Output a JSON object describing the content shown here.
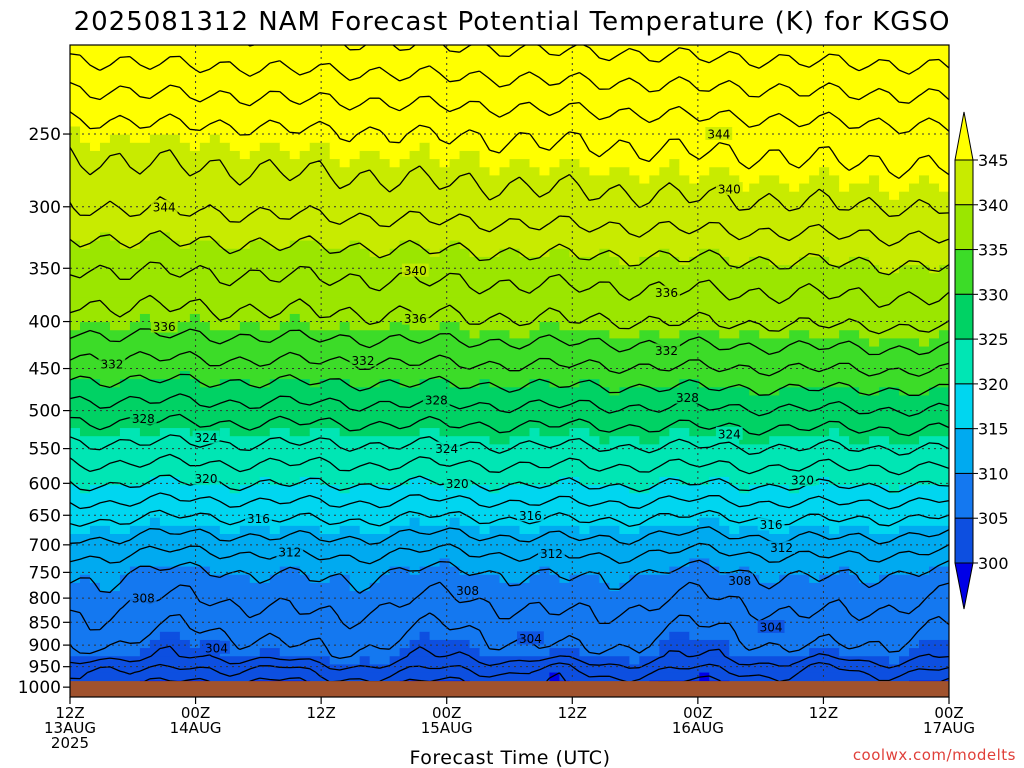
{
  "chart_data": {
    "type": "heatmap",
    "title": "2025081312 NAM Forecast Potential Temperature (K) for KGSO",
    "xlabel": "Forecast Time (UTC)",
    "ylabel": "",
    "y_axis": {
      "scale": "log-pressure",
      "inverted": true,
      "ticks": [
        250,
        300,
        350,
        400,
        450,
        500,
        550,
        600,
        650,
        700,
        750,
        800,
        850,
        900,
        950,
        1000
      ],
      "range": [
        200,
        1025
      ]
    },
    "x_axis": {
      "range_hours": [
        0,
        84
      ],
      "ticks": [
        {
          "hour": 0,
          "lines": [
            "12Z",
            "13AUG",
            "2025"
          ]
        },
        {
          "hour": 12,
          "lines": [
            "00Z",
            "14AUG"
          ]
        },
        {
          "hour": 24,
          "lines": [
            "12Z"
          ]
        },
        {
          "hour": 36,
          "lines": [
            "00Z",
            "15AUG"
          ]
        },
        {
          "hour": 48,
          "lines": [
            "12Z"
          ]
        },
        {
          "hour": 60,
          "lines": [
            "00Z",
            "16AUG"
          ]
        },
        {
          "hour": 72,
          "lines": [
            "12Z"
          ]
        },
        {
          "hour": 84,
          "lines": [
            "00Z",
            "17AUG"
          ]
        }
      ]
    },
    "grid": true,
    "colorbar": {
      "placement": "right",
      "levels": [
        300,
        305,
        310,
        315,
        320,
        325,
        330,
        335,
        340,
        345
      ],
      "colors": [
        "#0000e6",
        "#0d4fe0",
        "#1478f0",
        "#00aaf0",
        "#00d6f0",
        "#00e6b4",
        "#00d264",
        "#3cdc28",
        "#9be600",
        "#c8eb00",
        "#ffff00"
      ]
    },
    "base_profile": [
      {
        "p": 1000,
        "theta": 300
      },
      {
        "p": 925,
        "theta": 305
      },
      {
        "p": 850,
        "theta": 307
      },
      {
        "p": 750,
        "theta": 310
      },
      {
        "p": 700,
        "theta": 313
      },
      {
        "p": 600,
        "theta": 320
      },
      {
        "p": 500,
        "theta": 327
      },
      {
        "p": 450,
        "theta": 331
      },
      {
        "p": 400,
        "theta": 335
      },
      {
        "p": 350,
        "theta": 338
      },
      {
        "p": 300,
        "theta": 342
      },
      {
        "p": 250,
        "theta": 345
      },
      {
        "p": 200,
        "theta": 351
      }
    ],
    "surface": {
      "pressure": 985,
      "color": "#a0522d"
    },
    "contour_labels": [
      {
        "hour": 9,
        "p": 300,
        "value": 344
      },
      {
        "hour": 33,
        "p": 352,
        "value": 340
      },
      {
        "hour": 63,
        "p": 287,
        "value": 340
      },
      {
        "hour": 62,
        "p": 250,
        "value": 344
      },
      {
        "hour": 57,
        "p": 372,
        "value": 336
      },
      {
        "hour": 33,
        "p": 397,
        "value": 336
      },
      {
        "hour": 9,
        "p": 405,
        "value": 336
      },
      {
        "hour": 28,
        "p": 441,
        "value": 332
      },
      {
        "hour": 57,
        "p": 430,
        "value": 332
      },
      {
        "hour": 4,
        "p": 445,
        "value": 332
      },
      {
        "hour": 35,
        "p": 487,
        "value": 328
      },
      {
        "hour": 59,
        "p": 484,
        "value": 328
      },
      {
        "hour": 7,
        "p": 510,
        "value": 328
      },
      {
        "hour": 13,
        "p": 535,
        "value": 324
      },
      {
        "hour": 36,
        "p": 550,
        "value": 324
      },
      {
        "hour": 63,
        "p": 530,
        "value": 324
      },
      {
        "hour": 13,
        "p": 593,
        "value": 320
      },
      {
        "hour": 37,
        "p": 600,
        "value": 320
      },
      {
        "hour": 70,
        "p": 595,
        "value": 320
      },
      {
        "hour": 18,
        "p": 655,
        "value": 316
      },
      {
        "hour": 44,
        "p": 650,
        "value": 316
      },
      {
        "hour": 67,
        "p": 665,
        "value": 316
      },
      {
        "hour": 21,
        "p": 713,
        "value": 312
      },
      {
        "hour": 46,
        "p": 715,
        "value": 312
      },
      {
        "hour": 68,
        "p": 705,
        "value": 312
      },
      {
        "hour": 7,
        "p": 800,
        "value": 308
      },
      {
        "hour": 38,
        "p": 785,
        "value": 308
      },
      {
        "hour": 64,
        "p": 765,
        "value": 308
      },
      {
        "hour": 14,
        "p": 906,
        "value": 304
      },
      {
        "hour": 44,
        "p": 885,
        "value": 304
      },
      {
        "hour": 67,
        "p": 860,
        "value": 304
      }
    ],
    "cold_pockets": [
      {
        "hour": 2.8,
        "p": 955,
        "value": 300
      },
      {
        "hour": 20,
        "p": 966,
        "value": 300
      },
      {
        "hour": 46.5,
        "p": 958,
        "value": 300
      },
      {
        "hour": 72.3,
        "p": 952,
        "value": 300
      }
    ]
  },
  "footer": {
    "credit": "coolwx.com/modelts"
  }
}
